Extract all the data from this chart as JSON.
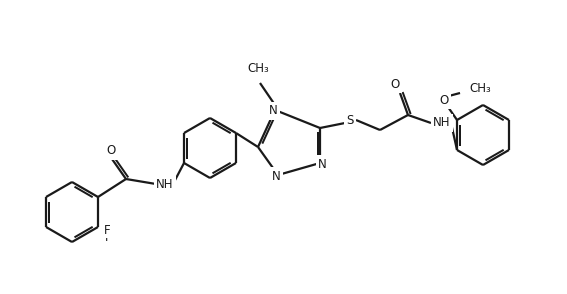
{
  "bg_color": "#ffffff",
  "line_color": "#1a1a1a",
  "line_width": 1.6,
  "font_size": 8.5,
  "figsize": [
    5.67,
    2.94
  ],
  "dpi": 100,
  "atoms": {
    "F_label": "F",
    "O1_label": "O",
    "NH1_label": "NH",
    "N1_label": "N",
    "N2_label": "N",
    "N3_label": "N",
    "S_label": "S",
    "O2_label": "O",
    "NH2_label": "NH",
    "O3_label": "O"
  }
}
